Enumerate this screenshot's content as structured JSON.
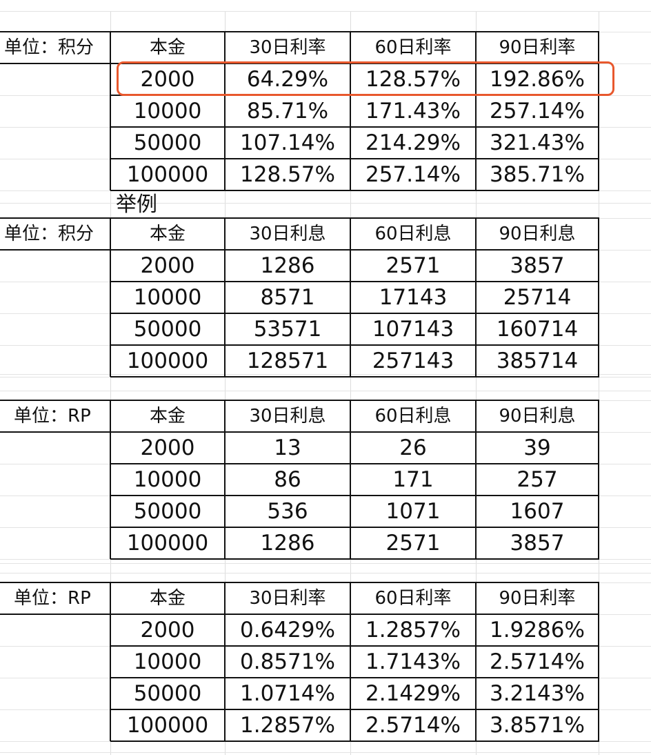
{
  "tables": [
    {
      "unit_label": "单位：积分",
      "headers": [
        "本金",
        "30日利率",
        "60日利率",
        "90日利率"
      ],
      "rows": [
        [
          "2000",
          "64.29%",
          "128.57%",
          "192.86%"
        ],
        [
          "10000",
          "85.71%",
          "171.43%",
          "257.14%"
        ],
        [
          "50000",
          "107.14%",
          "214.29%",
          "321.43%"
        ],
        [
          "100000",
          "128.57%",
          "257.14%",
          "385.71%"
        ]
      ]
    },
    {
      "unit_label": "单位：积分",
      "headers": [
        "本金",
        "30日利息",
        "60日利息",
        "90日利息"
      ],
      "rows": [
        [
          "2000",
          "1286",
          "2571",
          "3857"
        ],
        [
          "10000",
          "8571",
          "17143",
          "25714"
        ],
        [
          "50000",
          "53571",
          "107143",
          "160714"
        ],
        [
          "100000",
          "128571",
          "257143",
          "385714"
        ]
      ]
    },
    {
      "unit_label": "单位：RP",
      "headers": [
        "本金",
        "30日利息",
        "60日利息",
        "90日利息"
      ],
      "rows": [
        [
          "2000",
          "13",
          "26",
          "39"
        ],
        [
          "10000",
          "86",
          "171",
          "257"
        ],
        [
          "50000",
          "536",
          "1071",
          "1607"
        ],
        [
          "100000",
          "1286",
          "2571",
          "3857"
        ]
      ]
    },
    {
      "unit_label": "单位：RP",
      "headers": [
        "本金",
        "30日利率",
        "60日利率",
        "90日利率"
      ],
      "rows": [
        [
          "2000",
          "0.6429%",
          "1.2857%",
          "1.9286%"
        ],
        [
          "10000",
          "0.8571%",
          "1.7143%",
          "2.5714%"
        ],
        [
          "50000",
          "1.0714%",
          "2.1429%",
          "3.2143%"
        ],
        [
          "100000",
          "1.2857%",
          "2.5714%",
          "3.8571%"
        ]
      ]
    }
  ],
  "example_label": "举例",
  "colors": {
    "highlight": "#e8582d",
    "border": "#111111",
    "gridline": "#dcdcdc"
  }
}
